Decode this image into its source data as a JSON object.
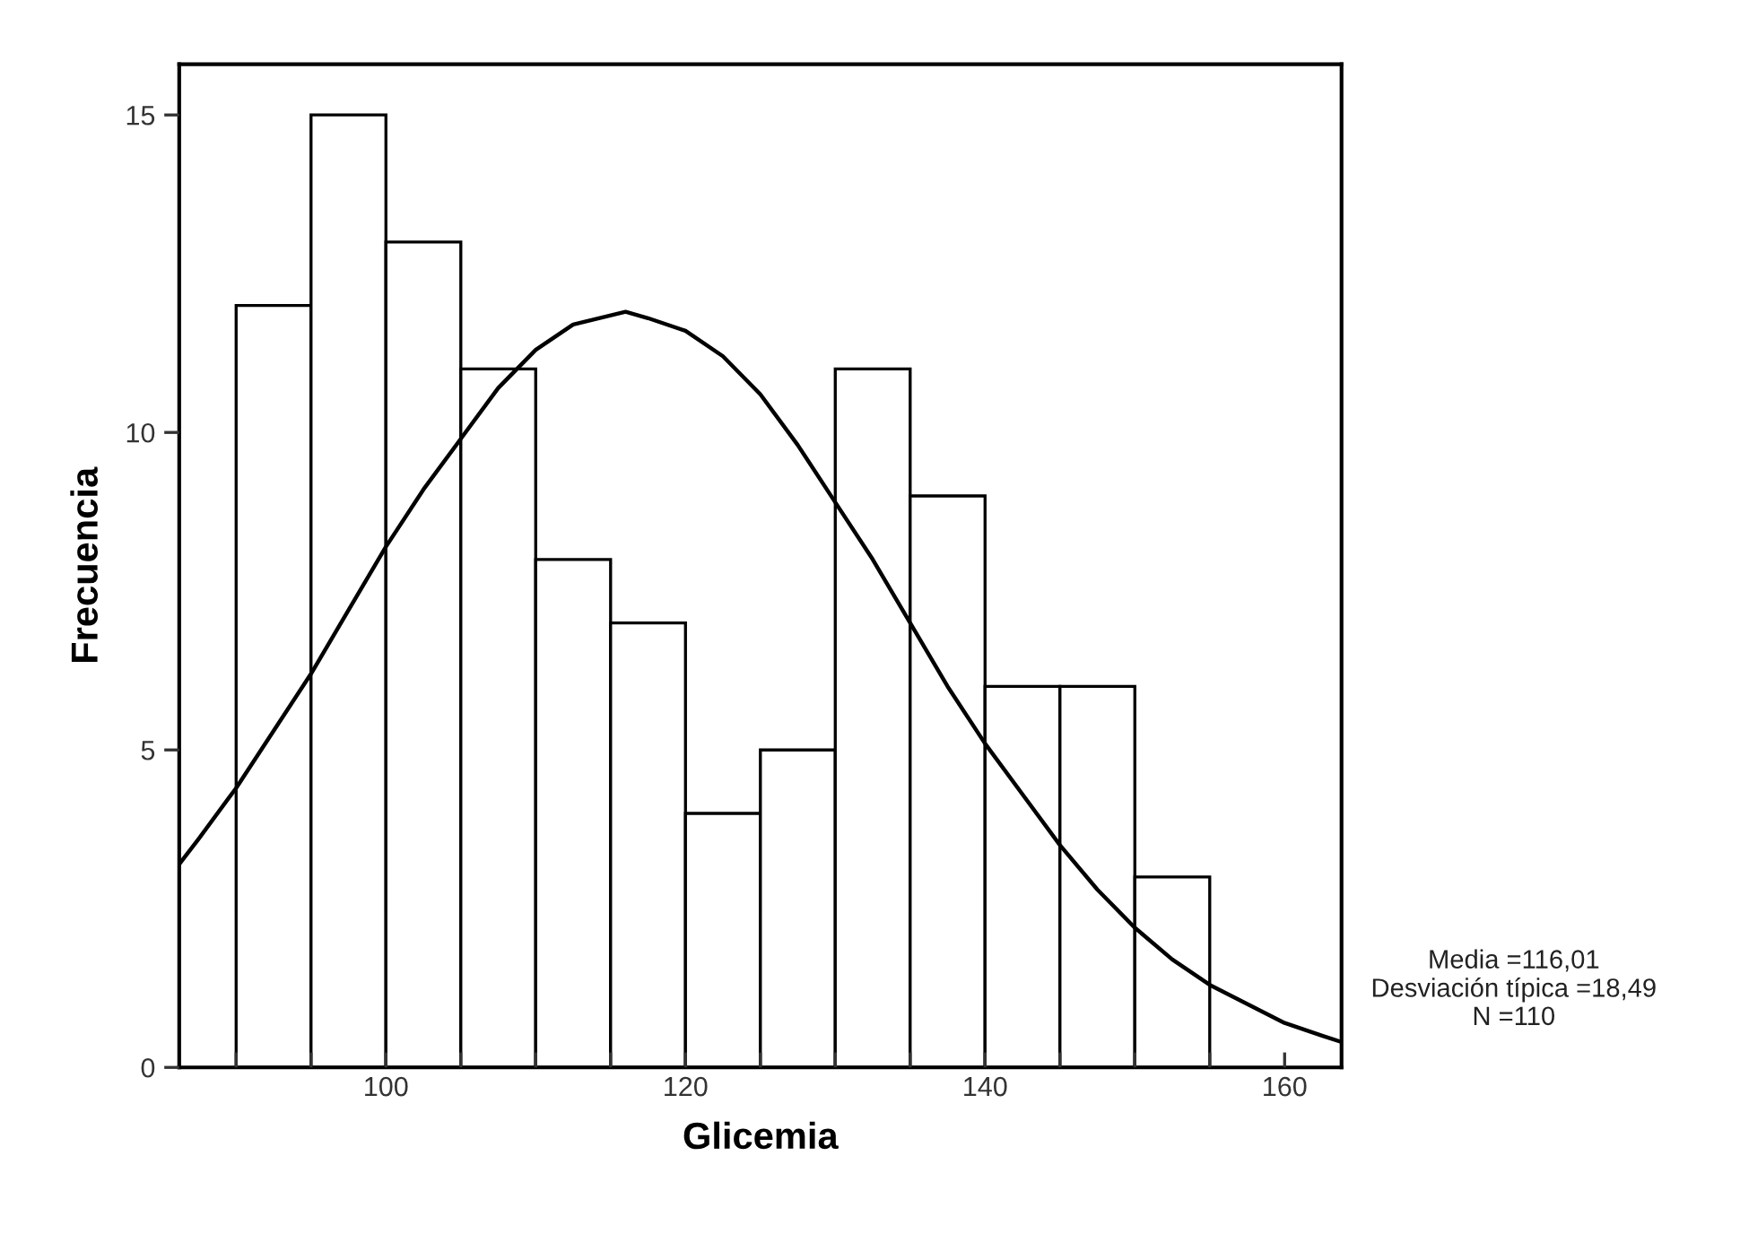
{
  "chart_data": {
    "type": "histogram",
    "xlabel": "Glicemia",
    "ylabel": "Frecuencia",
    "series": [
      {
        "color": "#ffffff",
        "bins": [
          90,
          95,
          100,
          105,
          110,
          115,
          120,
          125,
          130,
          135,
          140,
          145,
          150,
          155
        ],
        "values": [
          12,
          15,
          13,
          11,
          8,
          7,
          4,
          5,
          11,
          9,
          6,
          6,
          3
        ]
      },
      {
        "type": "line",
        "color": "#000000",
        "x": [
          86.2,
          87.5,
          90,
          92.5,
          95,
          97.5,
          100,
          102.5,
          105,
          107.5,
          110,
          112.5,
          116,
          117.5,
          120,
          122.5,
          125,
          127.5,
          130,
          132.5,
          135,
          137.5,
          140,
          142.5,
          145,
          147.5,
          150,
          152.5,
          155,
          157.5,
          160,
          162.5,
          163.8
        ],
        "values": [
          3.2,
          3.6,
          4.4,
          5.3,
          6.2,
          7.2,
          8.2,
          9.1,
          9.9,
          10.7,
          11.3,
          11.7,
          11.9,
          11.8,
          11.6,
          11.2,
          10.6,
          9.8,
          8.9,
          8.0,
          7.0,
          6.0,
          5.1,
          4.3,
          3.5,
          2.8,
          2.2,
          1.7,
          1.3,
          1.0,
          0.7,
          0.5,
          0.4
        ]
      }
    ],
    "xlim": [
      86.2,
      163.8
    ],
    "ylim": [
      0,
      15.8
    ],
    "xticks": [
      {
        "value": 90,
        "label": null
      },
      {
        "value": 95,
        "label": null
      },
      100,
      {
        "value": 105,
        "label": null
      },
      {
        "value": 110,
        "label": null
      },
      {
        "value": 115,
        "label": null
      },
      120,
      {
        "value": 125,
        "label": null
      },
      {
        "value": 130,
        "label": null
      },
      {
        "value": 135,
        "label": null
      },
      140,
      {
        "value": 145,
        "label": null
      },
      {
        "value": 150,
        "label": null
      },
      {
        "value": 155,
        "label": null
      },
      160
    ],
    "yticks": [
      0,
      5,
      10,
      15
    ],
    "grid": false,
    "legend": false,
    "annotations": [
      "Media =116,01\nDesviación típica =18,49\nN =110"
    ]
  }
}
